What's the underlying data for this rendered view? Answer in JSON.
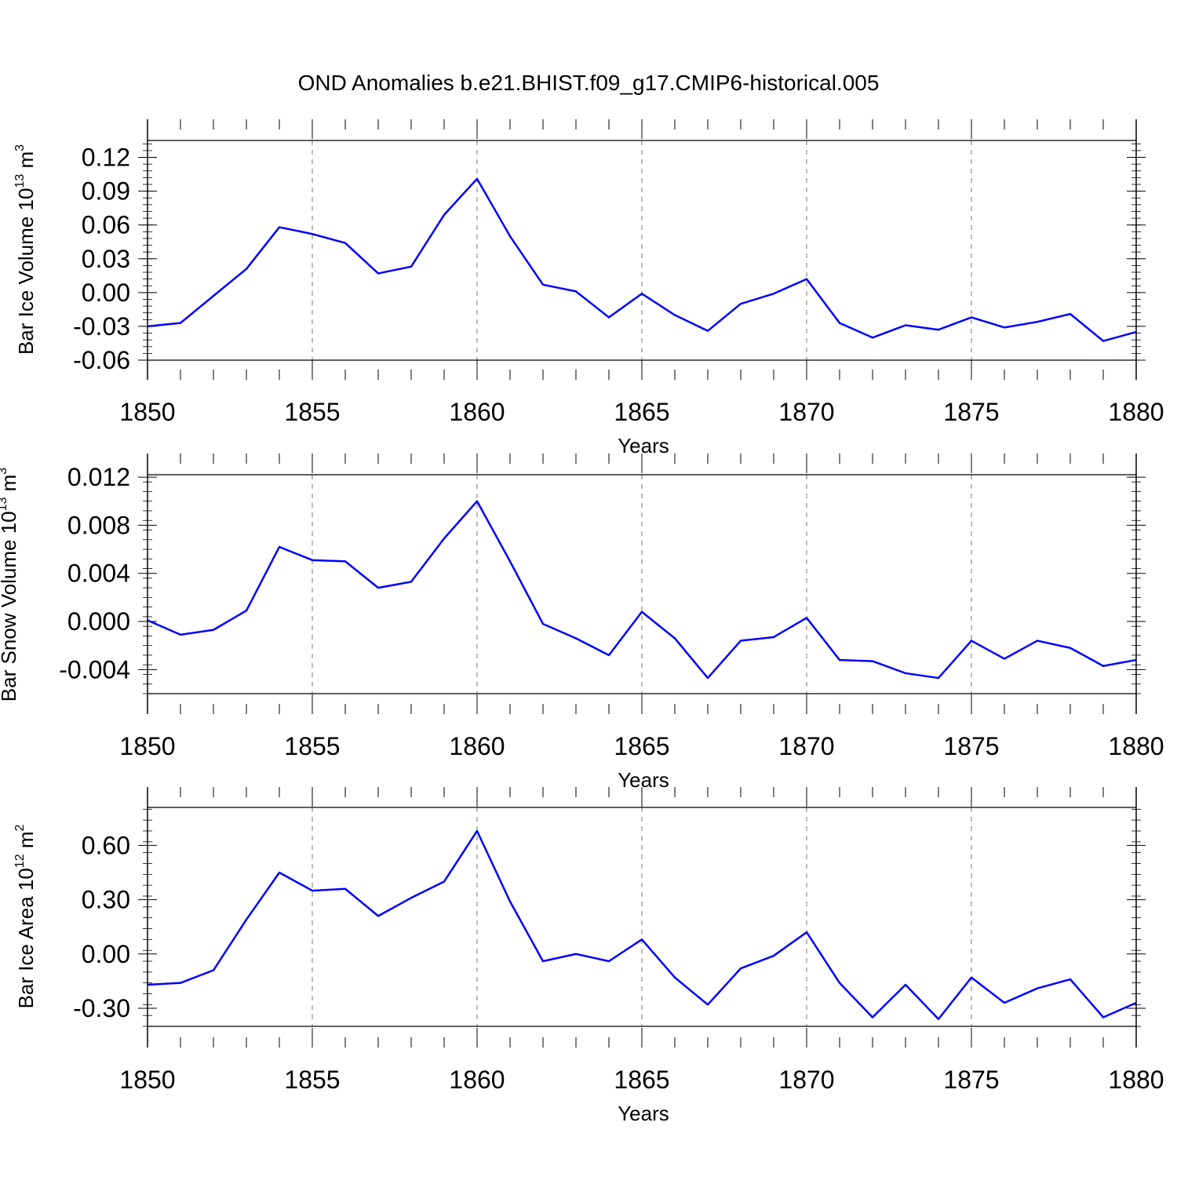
{
  "title": "OND Anomalies b.e21.BHIST.f09_g17.CMIP6-historical.005",
  "colors": {
    "line": "#0000ff",
    "axis": "#000000",
    "grid": "#777777"
  },
  "chart_data": [
    {
      "type": "line",
      "name": "ice-volume",
      "ylabel": {
        "text": "Bar Ice Volume 10",
        "exponent": "13",
        "unit": " m",
        "unit_exponent": "3"
      },
      "xlabel": "Years",
      "xlim": [
        1850,
        1880
      ],
      "ylim": [
        -0.06,
        0.135
      ],
      "x_ticks": [
        "1850",
        "1855",
        "1860",
        "1865",
        "1870",
        "1875",
        "1880"
      ],
      "y_ticks": [
        "0.12",
        "0.09",
        "0.06",
        "0.03",
        "0.00",
        "-0.03",
        "-0.06"
      ],
      "grid": "vertical-dashed",
      "x": [
        1850,
        1851,
        1852,
        1853,
        1854,
        1855,
        1856,
        1857,
        1858,
        1859,
        1860,
        1861,
        1862,
        1863,
        1864,
        1865,
        1866,
        1867,
        1868,
        1869,
        1870,
        1871,
        1872,
        1873,
        1874,
        1875,
        1876,
        1877,
        1878,
        1879,
        1880
      ],
      "values": [
        -0.03,
        -0.027,
        -0.003,
        0.021,
        0.058,
        0.052,
        0.044,
        0.017,
        0.023,
        0.069,
        0.101,
        0.05,
        0.007,
        0.001,
        -0.022,
        -0.001,
        -0.02,
        -0.034,
        -0.01,
        -0.001,
        0.012,
        -0.027,
        -0.04,
        -0.029,
        -0.033,
        -0.022,
        -0.031,
        -0.026,
        -0.019,
        -0.043,
        -0.035
      ]
    },
    {
      "type": "line",
      "name": "snow-volume",
      "ylabel": {
        "text": "Bar Snow Volume 10",
        "exponent": "13",
        "unit": " m",
        "unit_exponent": "3"
      },
      "xlabel": "Years",
      "xlim": [
        1850,
        1880
      ],
      "ylim": [
        -0.006,
        0.0122
      ],
      "x_ticks": [
        "1850",
        "1855",
        "1860",
        "1865",
        "1870",
        "1875",
        "1880"
      ],
      "y_ticks": [
        "0.012",
        "0.008",
        "0.004",
        "0.000",
        "-0.004"
      ],
      "grid": "vertical-dashed",
      "x": [
        1850,
        1851,
        1852,
        1853,
        1854,
        1855,
        1856,
        1857,
        1858,
        1859,
        1860,
        1861,
        1862,
        1863,
        1864,
        1865,
        1866,
        1867,
        1868,
        1869,
        1870,
        1871,
        1872,
        1873,
        1874,
        1875,
        1876,
        1877,
        1878,
        1879,
        1880
      ],
      "values": [
        0.0001,
        -0.0011,
        -0.0007,
        0.0009,
        0.0062,
        0.0051,
        0.005,
        0.0028,
        0.0033,
        0.0069,
        0.01,
        0.005,
        -0.0002,
        -0.0014,
        -0.0028,
        0.0008,
        -0.0014,
        -0.0047,
        -0.0016,
        -0.0013,
        0.0003,
        -0.0032,
        -0.0033,
        -0.0043,
        -0.0047,
        -0.0016,
        -0.0031,
        -0.0016,
        -0.0022,
        -0.0037,
        -0.0032
      ]
    },
    {
      "type": "line",
      "name": "ice-area",
      "ylabel": {
        "text": "Bar Ice Area 10",
        "exponent": "12",
        "unit": " m",
        "unit_exponent": "2"
      },
      "xlabel": "Years",
      "xlim": [
        1850,
        1880
      ],
      "ylim": [
        -0.4,
        0.81
      ],
      "x_ticks": [
        "1850",
        "1855",
        "1860",
        "1865",
        "1870",
        "1875",
        "1880"
      ],
      "y_ticks": [
        "0.60",
        "0.30",
        "0.00",
        "-0.30"
      ],
      "grid": "vertical-dashed",
      "x": [
        1850,
        1851,
        1852,
        1853,
        1854,
        1855,
        1856,
        1857,
        1858,
        1859,
        1860,
        1861,
        1862,
        1863,
        1864,
        1865,
        1866,
        1867,
        1868,
        1869,
        1870,
        1871,
        1872,
        1873,
        1874,
        1875,
        1876,
        1877,
        1878,
        1879,
        1880
      ],
      "values": [
        -0.17,
        -0.16,
        -0.09,
        0.19,
        0.45,
        0.35,
        0.36,
        0.21,
        0.31,
        0.4,
        0.68,
        0.29,
        -0.04,
        0.0,
        -0.04,
        0.08,
        -0.13,
        -0.28,
        -0.08,
        -0.01,
        0.12,
        -0.16,
        -0.35,
        -0.17,
        -0.36,
        -0.13,
        -0.27,
        -0.19,
        -0.14,
        -0.35,
        -0.27
      ]
    }
  ]
}
